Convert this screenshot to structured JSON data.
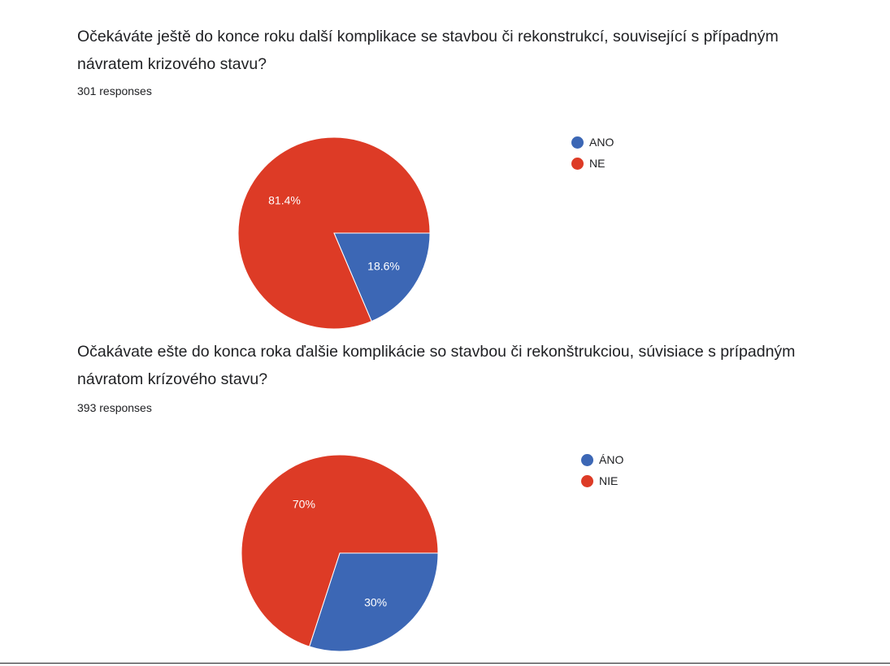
{
  "colors": {
    "blue": "#3c67b5",
    "red": "#dd3b26",
    "label_text": "#ffffff"
  },
  "chart_data": [
    {
      "type": "pie",
      "title": "Očekáváte ještě do konce roku další komplikace se stavbou či rekonstrukcí, související s případným návratem krizového stavu?",
      "subtitle": "301 responses",
      "legend_position": "right",
      "categories": [
        "ANO",
        "NE"
      ],
      "values": [
        18.6,
        81.4
      ],
      "labels": [
        "18.6%",
        "81.4%"
      ],
      "colors": [
        "#3c67b5",
        "#dd3b26"
      ]
    },
    {
      "type": "pie",
      "title": "Očakávate ešte do konca roka ďalšie komplikácie so stavbou či rekonštrukciou, súvisiace s prípadným návratom krízového stavu?",
      "subtitle": "393 responses",
      "legend_position": "right",
      "categories": [
        "ÁNO",
        "NIE"
      ],
      "values": [
        30,
        70
      ],
      "labels": [
        "30%",
        "70%"
      ],
      "colors": [
        "#3c67b5",
        "#dd3b26"
      ]
    }
  ]
}
